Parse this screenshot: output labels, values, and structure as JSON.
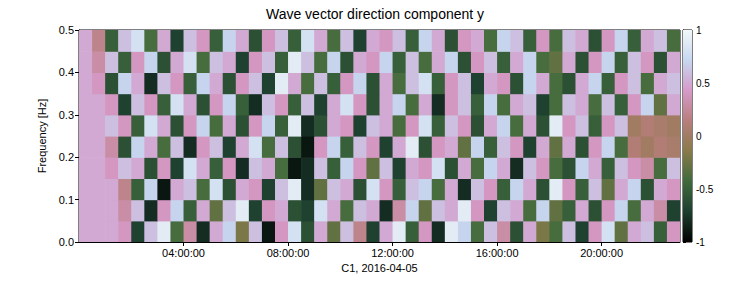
{
  "chart_data": {
    "type": "heatmap",
    "title": "Wave vector direction component y",
    "xlabel": "C1, 2016-04-05",
    "ylabel": "Frequency [Hz]",
    "xlim": [
      0,
      23
    ],
    "xticks": [
      {
        "value": 4,
        "label": "04:00:00"
      },
      {
        "value": 8,
        "label": "08:00:00"
      },
      {
        "value": 12,
        "label": "12:00:00"
      },
      {
        "value": 16,
        "label": "16:00:00"
      },
      {
        "value": 20,
        "label": "20:00:00"
      }
    ],
    "ylim": [
      0,
      0.5
    ],
    "yticks": [
      {
        "value": 0,
        "label": "0.0"
      },
      0.1,
      0.2,
      0.3,
      0.4,
      0.5
    ],
    "cells": {
      "x": [
        0.25,
        0.75,
        1.25,
        1.75,
        2.25,
        2.75,
        3.25,
        3.75,
        4.25,
        4.75,
        5.25,
        5.75,
        6.25,
        6.75,
        7.25,
        7.75,
        8.25,
        8.75,
        9.25,
        9.75,
        10.25,
        10.75,
        11.25,
        11.75,
        12.25,
        12.75,
        13.25,
        13.75,
        14.25,
        14.75,
        15.25,
        15.75,
        16.25,
        16.75,
        17.25,
        17.75,
        18.25,
        18.75,
        19.25,
        19.75,
        20.25,
        20.75,
        21.25,
        21.75,
        22.25,
        22.75
      ],
      "y": [
        0.025,
        0.075,
        0.125,
        0.175,
        0.225,
        0.275,
        0.325,
        0.375,
        0.425,
        0.475
      ],
      "values": [
        [
          0.5,
          0.5,
          0.5,
          0.4,
          -0.7,
          0.6,
          0.9,
          -0.4,
          0.3,
          -0.8,
          0.5,
          0.7,
          -0.2,
          0.6,
          -0.9,
          0.4,
          0.8,
          -0.6,
          0.5,
          -0.3,
          0.6,
          0.2,
          -0.7,
          0.5,
          0.9,
          -0.5,
          0.4,
          -0.8,
          0.9,
          0.7,
          -0.4,
          0.6,
          0.3,
          -0.6,
          0.5,
          -0.2,
          -0.4,
          0.6,
          -0.7,
          0.4,
          0.8,
          -0.3,
          0.5,
          0.6,
          -0.5,
          0.4
        ],
        [
          0.5,
          0.5,
          0.5,
          0.3,
          0.6,
          -0.8,
          0.4,
          0.7,
          -0.5,
          0.5,
          -0.3,
          0.6,
          0.9,
          -0.7,
          0.4,
          0.5,
          -0.6,
          -0.7,
          0.8,
          0.5,
          -0.4,
          0.6,
          0.5,
          -0.8,
          0.3,
          0.7,
          -0.3,
          0.6,
          0.5,
          0.9,
          0.4,
          -0.7,
          0.6,
          0.5,
          -0.4,
          0.7,
          -0.3,
          -0.5,
          0.5,
          -0.6,
          0.4,
          0.7,
          -0.4,
          0.5,
          0.3,
          -0.7
        ],
        [
          0.5,
          0.5,
          0.5,
          0.2,
          -0.5,
          0.7,
          -0.9,
          0.5,
          0.6,
          -0.4,
          0.8,
          -0.6,
          0.5,
          0.4,
          -0.7,
          0.6,
          0.9,
          -0.8,
          -0.3,
          0.6,
          0.5,
          -0.6,
          0.8,
          0.4,
          -0.5,
          0.6,
          0.7,
          -0.4,
          0.5,
          -0.8,
          0.6,
          0.4,
          -0.5,
          0.7,
          0.5,
          -0.6,
          0.9,
          0.4,
          -0.5,
          0.6,
          -0.3,
          0.5,
          0.7,
          -0.6,
          0.5,
          0.4
        ],
        [
          0.5,
          0.5,
          0.4,
          0.6,
          0.5,
          -0.6,
          0.4,
          -0.7,
          0.8,
          0.5,
          -0.5,
          0.4,
          -0.8,
          0.6,
          0.5,
          -0.4,
          -0.9,
          -0.8,
          0.6,
          -0.5,
          0.7,
          0.4,
          -0.3,
          0.6,
          -0.7,
          0.5,
          0.4,
          0.8,
          -0.6,
          0.5,
          -0.4,
          0.7,
          0.5,
          -0.8,
          0.6,
          0.4,
          -0.4,
          -0.6,
          0.7,
          0.5,
          -0.5,
          0.6,
          0.4,
          0.3,
          -0.4,
          0.6
        ],
        [
          0.5,
          0.5,
          0.3,
          -0.6,
          0.7,
          0.5,
          -0.4,
          0.6,
          -0.8,
          0.4,
          0.6,
          -0.7,
          0.5,
          0.8,
          -0.4,
          0.6,
          -0.6,
          -0.9,
          0.4,
          0.7,
          -0.5,
          0.6,
          0.4,
          -0.7,
          0.5,
          0.9,
          -0.6,
          0.4,
          0.5,
          -0.3,
          0.7,
          -0.5,
          0.6,
          0.4,
          -0.7,
          0.5,
          -0.3,
          0.5,
          -0.6,
          0.4,
          0.7,
          -0.4,
          0.1,
          0.0,
          0.1,
          0.05
        ],
        [
          0.5,
          0.5,
          0.6,
          0.4,
          -0.5,
          0.8,
          0.5,
          -0.6,
          0.4,
          0.7,
          -0.4,
          0.5,
          -0.6,
          0.4,
          0.7,
          -0.5,
          0.9,
          -0.8,
          -0.6,
          0.5,
          0.4,
          -0.7,
          0.6,
          0.5,
          -0.4,
          0.4,
          0.8,
          -0.5,
          0.6,
          0.4,
          -0.6,
          0.5,
          0.7,
          -0.4,
          0.5,
          -0.6,
          0.9,
          0.4,
          0.6,
          -0.5,
          0.4,
          0.6,
          0.0,
          0.1,
          0.05,
          0.0
        ],
        [
          0.5,
          0.5,
          0.4,
          -0.7,
          0.6,
          0.4,
          -0.5,
          0.8,
          0.5,
          -0.6,
          0.4,
          0.7,
          -0.5,
          -0.8,
          0.6,
          0.4,
          -0.5,
          0.6,
          -0.7,
          0.5,
          0.8,
          0.4,
          -0.6,
          0.5,
          0.7,
          -0.4,
          0.5,
          -0.8,
          0.4,
          0.6,
          -0.5,
          0.7,
          -0.4,
          0.5,
          0.6,
          -0.7,
          -0.4,
          0.6,
          0.5,
          -0.4,
          0.6,
          -0.5,
          0.4,
          0.7,
          -0.3,
          0.5
        ],
        [
          0.5,
          0.4,
          -0.6,
          0.7,
          0.5,
          -0.8,
          0.6,
          0.4,
          -0.5,
          0.7,
          0.5,
          -0.6,
          0.4,
          0.6,
          -0.7,
          0.9,
          0.5,
          -0.4,
          0.6,
          -0.5,
          0.4,
          0.7,
          -0.6,
          0.5,
          -0.4,
          0.6,
          0.8,
          -0.5,
          0.4,
          0.6,
          -0.7,
          0.5,
          0.4,
          -0.6,
          0.7,
          0.5,
          -0.4,
          -0.6,
          0.5,
          0.7,
          -0.5,
          0.4,
          0.6,
          -0.4,
          0.5,
          0.6
        ],
        [
          0.5,
          0.3,
          0.6,
          -0.5,
          0.4,
          0.7,
          -0.6,
          0.5,
          0.8,
          -0.4,
          0.6,
          0.5,
          -0.7,
          0.4,
          0.6,
          -0.5,
          0.9,
          0.6,
          -0.4,
          0.7,
          -0.6,
          0.5,
          0.4,
          0.7,
          -0.5,
          0.6,
          -0.4,
          0.5,
          0.7,
          -0.6,
          0.4,
          0.6,
          -0.5,
          0.5,
          0.7,
          -0.4,
          -0.3,
          0.5,
          -0.6,
          0.4,
          0.7,
          -0.5,
          0.6,
          0.4,
          -0.6,
          0.5
        ],
        [
          0.5,
          0.2,
          -0.5,
          0.6,
          0.8,
          -0.4,
          0.5,
          -0.7,
          0.6,
          0.4,
          -0.5,
          0.7,
          0.5,
          -0.6,
          0.4,
          0.6,
          -0.5,
          0.8,
          0.5,
          -0.4,
          0.6,
          -0.7,
          0.5,
          0.4,
          0.6,
          -0.5,
          0.7,
          0.5,
          -0.6,
          0.4,
          0.5,
          -0.4,
          0.7,
          0.6,
          -0.5,
          0.4,
          -0.4,
          0.6,
          0.5,
          -0.6,
          0.4,
          0.7,
          -0.5,
          0.5,
          0.6,
          -0.4
        ]
      ]
    },
    "colorbar": {
      "range": [
        -1,
        1
      ],
      "ticks": [
        -1,
        -0.5,
        0,
        0.5,
        1
      ]
    }
  }
}
